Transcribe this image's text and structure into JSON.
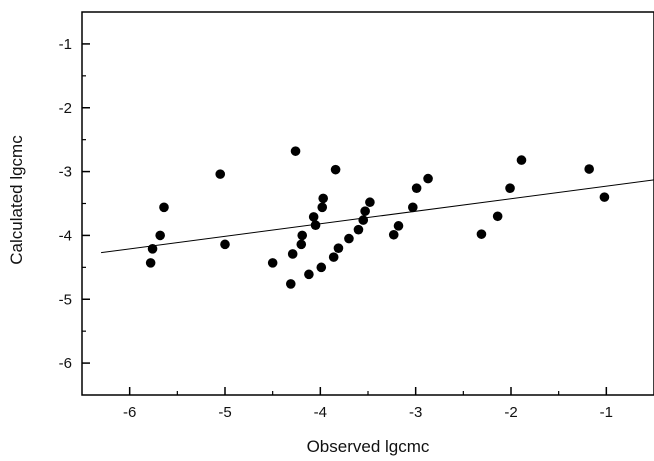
{
  "chart_data": {
    "type": "scatter",
    "title": "",
    "xlabel": "Observed lgcmc",
    "ylabel": "Calculated lgcmc",
    "xlim": [
      -6.5,
      -0.5
    ],
    "ylim": [
      -6.5,
      -0.5
    ],
    "x_ticks": [
      -6,
      -5,
      -4,
      -3,
      -2,
      -1
    ],
    "y_ticks": [
      -1,
      -2,
      -3,
      -4,
      -5,
      -6
    ],
    "x_tick_labels": [
      "-6",
      "-5",
      "-4",
      "-3",
      "-2",
      "-1"
    ],
    "y_tick_labels": [
      "-1",
      "-2",
      "-3",
      "-4",
      "-5",
      "-6"
    ],
    "grid": false,
    "legend": "none",
    "colors": {
      "points": "#000000",
      "line": "#000000",
      "axes": "#000000"
    },
    "series": [
      {
        "points": [
          {
            "x": -5.78,
            "y": -4.43
          },
          {
            "x": -5.76,
            "y": -4.21
          },
          {
            "x": -5.68,
            "y": -4.0
          },
          {
            "x": -5.64,
            "y": -3.56
          },
          {
            "x": -5.05,
            "y": -3.04
          },
          {
            "x": -5.0,
            "y": -4.14
          },
          {
            "x": -4.5,
            "y": -4.43
          },
          {
            "x": -4.31,
            "y": -4.76
          },
          {
            "x": -4.29,
            "y": -4.29
          },
          {
            "x": -4.26,
            "y": -2.68
          },
          {
            "x": -4.2,
            "y": -4.14
          },
          {
            "x": -4.19,
            "y": -4.0
          },
          {
            "x": -4.12,
            "y": -4.61
          },
          {
            "x": -4.07,
            "y": -3.71
          },
          {
            "x": -4.05,
            "y": -3.84
          },
          {
            "x": -3.99,
            "y": -4.5
          },
          {
            "x": -3.98,
            "y": -3.56
          },
          {
            "x": -3.97,
            "y": -3.42
          },
          {
            "x": -3.86,
            "y": -4.34
          },
          {
            "x": -3.84,
            "y": -2.97
          },
          {
            "x": -3.81,
            "y": -4.2
          },
          {
            "x": -3.7,
            "y": -4.05
          },
          {
            "x": -3.6,
            "y": -3.91
          },
          {
            "x": -3.55,
            "y": -3.76
          },
          {
            "x": -3.53,
            "y": -3.62
          },
          {
            "x": -3.48,
            "y": -3.48
          },
          {
            "x": -3.23,
            "y": -3.99
          },
          {
            "x": -3.18,
            "y": -3.85
          },
          {
            "x": -3.03,
            "y": -3.56
          },
          {
            "x": -2.99,
            "y": -3.26
          },
          {
            "x": -2.87,
            "y": -3.11
          },
          {
            "x": -2.31,
            "y": -3.98
          },
          {
            "x": -2.14,
            "y": -3.7
          },
          {
            "x": -2.01,
            "y": -3.26
          },
          {
            "x": -1.89,
            "y": -2.82
          },
          {
            "x": -1.18,
            "y": -2.96
          },
          {
            "x": -1.02,
            "y": -3.4
          }
        ]
      }
    ],
    "regression_line": {
      "x": [
        -6.3,
        -0.5
      ],
      "y": [
        -4.27,
        -3.13
      ]
    }
  }
}
